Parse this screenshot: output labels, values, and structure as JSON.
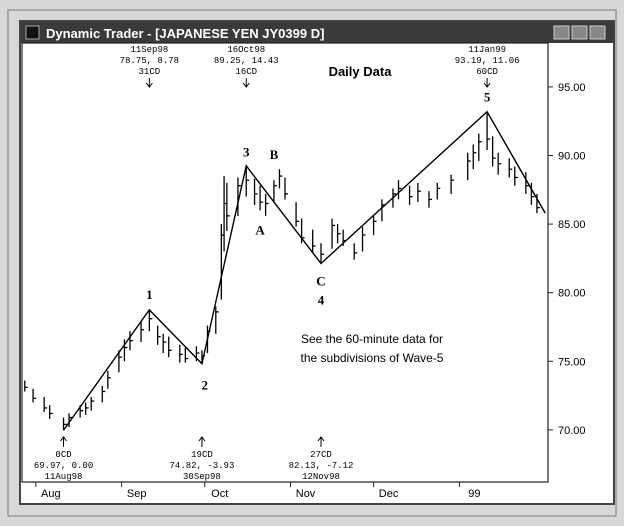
{
  "window_title": "Dynamic Trader - [JAPANESE YEN  JY0399 D]",
  "chart_data": {
    "type": "ohlc",
    "subtitle": "Daily Data",
    "notes": [
      "See the 60-minute data for",
      "the subdivisions of Wave-5"
    ],
    "color": "#000000",
    "xlim": [
      "1998-07-27",
      "1999-02-02"
    ],
    "xticks": [
      {
        "value": "1998-08-01",
        "label": "Aug"
      },
      {
        "value": "1998-09-01",
        "label": "Sep"
      },
      {
        "value": "1998-10-01",
        "label": "Oct"
      },
      {
        "value": "1998-11-01",
        "label": "Nov"
      },
      {
        "value": "1998-12-01",
        "label": "Dec"
      },
      {
        "value": "1999-01-01",
        "label": "99"
      }
    ],
    "ylim": [
      66.2,
      98.2
    ],
    "yticks": [
      {
        "value": 70,
        "label": "70.00"
      },
      {
        "value": 75,
        "label": "75.00"
      },
      {
        "value": 80,
        "label": "80.00"
      },
      {
        "value": 85,
        "label": "85.00"
      },
      {
        "value": 90,
        "label": "90.00"
      },
      {
        "value": 95,
        "label": "95.00"
      }
    ],
    "x": [
      "1998-07-28",
      "1998-07-31",
      "1998-08-04",
      "1998-08-06",
      "1998-08-11",
      "1998-08-13",
      "1998-08-17",
      "1998-08-19",
      "1998-08-21",
      "1998-08-25",
      "1998-08-27",
      "1998-08-31",
      "1998-09-02",
      "1998-09-04",
      "1998-09-08",
      "1998-09-11",
      "1998-09-14",
      "1998-09-16",
      "1998-09-18",
      "1998-09-22",
      "1998-09-24",
      "1998-09-28",
      "1998-09-30",
      "1998-10-02",
      "1998-10-05",
      "1998-10-07",
      "1998-10-08",
      "1998-10-09",
      "1998-10-13",
      "1998-10-16",
      "1998-10-19",
      "1998-10-21",
      "1998-10-23",
      "1998-10-26",
      "1998-10-28",
      "1998-10-30",
      "1998-11-03",
      "1998-11-05",
      "1998-11-09",
      "1998-11-12",
      "1998-11-16",
      "1998-11-18",
      "1998-11-20",
      "1998-11-24",
      "1998-11-27",
      "1998-12-01",
      "1998-12-04",
      "1998-12-08",
      "1998-12-10",
      "1998-12-14",
      "1998-12-17",
      "1998-12-21",
      "1998-12-24",
      "1998-12-29",
      "1999-01-04",
      "1999-01-06",
      "1999-01-08",
      "1999-01-11",
      "1999-01-13",
      "1999-01-15",
      "1999-01-19",
      "1999-01-21",
      "1999-01-25",
      "1999-01-27",
      "1999-01-29"
    ],
    "high": [
      73.6,
      73.0,
      72.4,
      71.8,
      70.9,
      71.2,
      71.8,
      72.0,
      72.4,
      73.2,
      74.3,
      75.8,
      76.6,
      77.2,
      77.9,
      78.75,
      77.6,
      77.0,
      76.8,
      76.2,
      76.0,
      76.1,
      75.8,
      77.6,
      79.0,
      85.0,
      88.5,
      88.0,
      88.4,
      89.25,
      88.3,
      87.8,
      87.2,
      88.2,
      89.0,
      88.4,
      86.6,
      85.4,
      84.6,
      83.6,
      85.4,
      85.0,
      84.6,
      83.6,
      84.8,
      85.6,
      86.8,
      87.6,
      88.2,
      87.8,
      88.0,
      87.4,
      88.0,
      88.6,
      90.2,
      90.8,
      91.6,
      93.19,
      91.4,
      90.2,
      89.8,
      89.2,
      88.8,
      88.0,
      87.2
    ],
    "low": [
      72.8,
      72.0,
      71.3,
      70.8,
      69.97,
      70.2,
      70.9,
      71.1,
      71.4,
      72.0,
      73.0,
      74.2,
      75.0,
      75.8,
      76.4,
      77.2,
      76.2,
      75.6,
      75.3,
      74.9,
      74.9,
      75.0,
      74.82,
      75.6,
      77.0,
      79.5,
      83.0,
      84.5,
      85.6,
      87.0,
      86.4,
      86.0,
      85.6,
      86.6,
      87.6,
      86.8,
      84.8,
      83.6,
      82.9,
      82.13,
      83.2,
      83.6,
      83.4,
      82.4,
      83.0,
      84.2,
      85.2,
      86.2,
      86.8,
      86.4,
      86.6,
      86.2,
      86.8,
      87.2,
      88.2,
      89.0,
      89.6,
      90.4,
      89.2,
      88.6,
      88.4,
      87.8,
      87.2,
      86.4,
      85.8
    ],
    "close": [
      73.1,
      72.3,
      71.6,
      71.2,
      70.4,
      70.9,
      71.4,
      71.6,
      72.1,
      72.8,
      73.8,
      75.3,
      76.0,
      76.5,
      77.3,
      78.1,
      76.8,
      76.4,
      75.8,
      75.5,
      75.2,
      75.6,
      75.4,
      77.2,
      78.6,
      84.2,
      86.5,
      85.6,
      87.8,
      88.2,
      87.2,
      86.6,
      86.5,
      87.8,
      88.5,
      87.2,
      85.2,
      84.0,
      83.4,
      82.8,
      84.9,
      84.3,
      83.8,
      82.9,
      84.2,
      85.2,
      86.4,
      87.2,
      87.6,
      87.0,
      87.4,
      86.8,
      87.6,
      88.2,
      89.6,
      90.2,
      91.0,
      91.2,
      89.8,
      89.4,
      89.0,
      88.4,
      87.8,
      87.0,
      86.2
    ],
    "wave": {
      "x": [
        "1998-08-11",
        "1998-09-11",
        "1998-09-30",
        "1998-10-16",
        "1998-11-12",
        "1999-01-11",
        "1999-02-01"
      ],
      "values": [
        69.97,
        78.75,
        74.82,
        89.25,
        82.13,
        93.19,
        85.8
      ]
    },
    "wave_labels": [
      {
        "text": "1",
        "x": "1998-09-11",
        "y": 79.9
      },
      {
        "text": "2",
        "x": "1998-10-01",
        "y": 73.3
      },
      {
        "text": "3",
        "x": "1998-10-16",
        "y": 90.3
      },
      {
        "text": "A",
        "x": "1998-10-21",
        "y": 84.6
      },
      {
        "text": "B",
        "x": "1998-10-26",
        "y": 90.1
      },
      {
        "text": "C",
        "x": "1998-11-12",
        "y": 80.9
      },
      {
        "text": "4",
        "x": "1998-11-12",
        "y": 79.5
      },
      {
        "text": "5",
        "x": "1999-01-11",
        "y": 94.3
      }
    ],
    "annotations": [
      {
        "x": "1998-09-11",
        "side": "top",
        "lines": [
          "11Sep98",
          "78.75, 8.78",
          "31CD"
        ]
      },
      {
        "x": "1998-10-16",
        "side": "top",
        "lines": [
          "16Oct98",
          "89.25, 14.43",
          "16CD"
        ]
      },
      {
        "x": "1999-01-11",
        "side": "top",
        "lines": [
          "11Jan99",
          "93.19, 11.06",
          "60CD"
        ]
      },
      {
        "x": "1998-08-11",
        "side": "bottom",
        "lines": [
          "0CD",
          "69.97, 0.00",
          "11Aug98"
        ]
      },
      {
        "x": "1998-09-30",
        "side": "bottom",
        "lines": [
          "19CD",
          "74.82, -3.93",
          "30Sep98"
        ]
      },
      {
        "x": "1998-11-12",
        "side": "bottom",
        "lines": [
          "27CD",
          "82.13, -7.12",
          "12Nov98"
        ]
      }
    ]
  }
}
